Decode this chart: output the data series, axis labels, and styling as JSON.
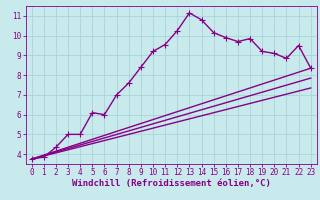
{
  "background_color": "#c8eaec",
  "grid_color": "#a8d4d8",
  "line_color": "#880088",
  "marker": "+",
  "markersize": 4,
  "linewidth": 1.0,
  "xlabel": "Windchill (Refroidissement éolien,°C)",
  "xlabel_fontsize": 6.5,
  "tick_fontsize": 5.5,
  "xlim": [
    -0.5,
    23.5
  ],
  "ylim": [
    3.5,
    11.5
  ],
  "yticks": [
    4,
    5,
    6,
    7,
    8,
    9,
    10,
    11
  ],
  "xticks": [
    0,
    1,
    2,
    3,
    4,
    5,
    6,
    7,
    8,
    9,
    10,
    11,
    12,
    13,
    14,
    15,
    16,
    17,
    18,
    19,
    20,
    21,
    22,
    23
  ],
  "line1_x": [
    0,
    1,
    2,
    3,
    4,
    5,
    6,
    7,
    8,
    9,
    10,
    11,
    12,
    13,
    14,
    15,
    16,
    17,
    18,
    19,
    20,
    21,
    22,
    23
  ],
  "line1_y": [
    3.75,
    3.85,
    4.35,
    5.0,
    5.0,
    6.1,
    6.0,
    7.0,
    7.6,
    8.4,
    9.2,
    9.55,
    10.25,
    11.15,
    10.8,
    10.15,
    9.9,
    9.7,
    9.85,
    9.2,
    9.1,
    8.85,
    9.5,
    8.35
  ],
  "line2_x": [
    0,
    23
  ],
  "line2_y": [
    3.75,
    8.35
  ],
  "line3_x": [
    0,
    23
  ],
  "line3_y": [
    3.75,
    7.85
  ],
  "line4_x": [
    0,
    23
  ],
  "line4_y": [
    3.75,
    7.35
  ]
}
